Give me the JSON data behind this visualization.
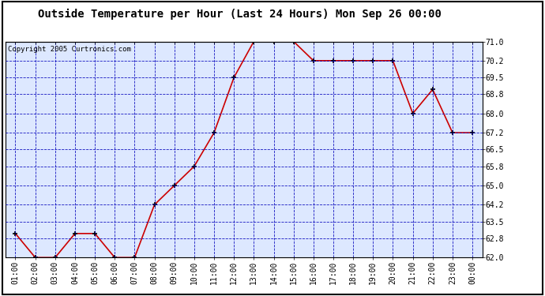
{
  "title": "Outside Temperature per Hour (Last 24 Hours) Mon Sep 26 00:00",
  "copyright": "Copyright 2005 Curtronics.com",
  "x_labels": [
    "01:00",
    "02:00",
    "03:00",
    "04:00",
    "05:00",
    "06:00",
    "07:00",
    "08:00",
    "09:00",
    "10:00",
    "11:00",
    "12:00",
    "13:00",
    "14:00",
    "15:00",
    "16:00",
    "17:00",
    "18:00",
    "19:00",
    "20:00",
    "21:00",
    "22:00",
    "23:00",
    "00:00"
  ],
  "y_values": [
    63.0,
    62.0,
    62.0,
    63.0,
    63.0,
    62.0,
    62.0,
    64.2,
    65.0,
    65.8,
    67.2,
    69.5,
    71.0,
    71.0,
    71.0,
    70.2,
    70.2,
    70.2,
    70.2,
    70.2,
    68.0,
    69.0,
    67.2,
    67.2
  ],
  "ylim": [
    62.0,
    71.0
  ],
  "yticks": [
    62.0,
    62.8,
    63.5,
    64.2,
    65.0,
    65.8,
    66.5,
    67.2,
    68.0,
    68.8,
    69.5,
    70.2,
    71.0
  ],
  "line_color": "#cc0000",
  "marker_color": "#000000",
  "bg_color": "#dde8ff",
  "outer_bg": "#ffffff",
  "grid_color": "#0000bb",
  "title_fontsize": 10,
  "copyright_fontsize": 6.5,
  "tick_fontsize": 7
}
